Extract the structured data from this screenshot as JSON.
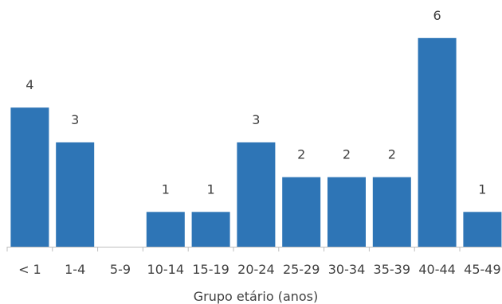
{
  "chart_data": {
    "type": "bar",
    "title": "",
    "xlabel": "Grupo etário (anos)",
    "ylabel": "",
    "categories": [
      "< 1",
      "1-4",
      "5-9",
      "10-14",
      "15-19",
      "20-24",
      "25-29",
      "30-34",
      "35-39",
      "40-44",
      "45-49"
    ],
    "values": [
      4,
      3,
      0,
      1,
      1,
      3,
      2,
      2,
      2,
      6,
      1
    ],
    "data_labels": [
      "4",
      "3",
      "",
      "1",
      "1",
      "3",
      "2",
      "2",
      "2",
      "6",
      "1"
    ],
    "ylim": [
      0,
      6
    ],
    "grid": false,
    "legend": "none",
    "bar_color": "#2E75B6",
    "axis_color": "#BFBFBF",
    "text_color": "#404040"
  }
}
